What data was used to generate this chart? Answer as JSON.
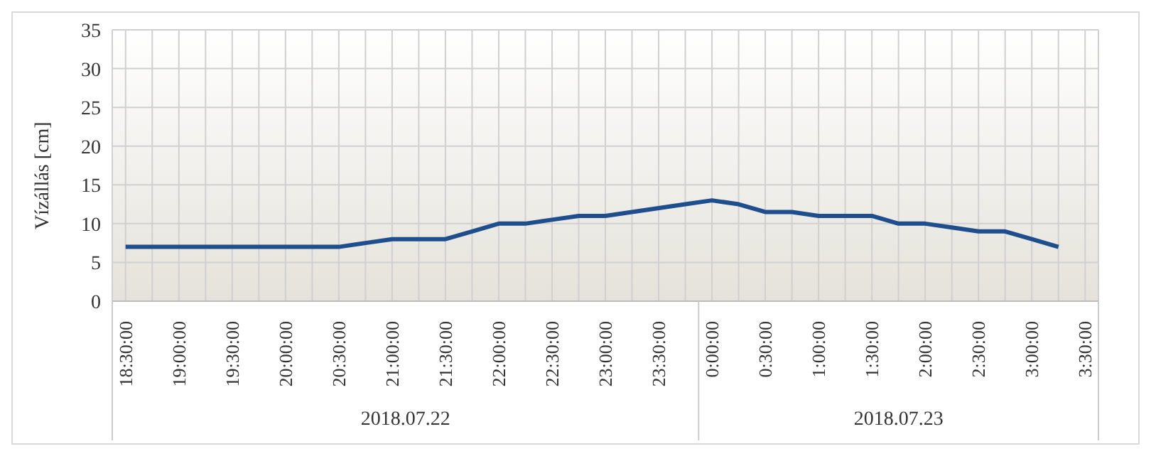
{
  "chart_data": {
    "type": "line",
    "ylabel": "Vízállás [cm]",
    "categories": [
      "18:30:00",
      null,
      "19:00:00",
      null,
      "19:30:00",
      null,
      "20:00:00",
      null,
      "20:30:00",
      null,
      "21:00:00",
      null,
      "21:30:00",
      null,
      "22:00:00",
      null,
      "22:30:00",
      null,
      "23:00:00",
      null,
      "23:30:00",
      null,
      "0:00:00",
      null,
      "0:30:00",
      null,
      "1:00:00",
      null,
      "1:30:00",
      null,
      "2:00:00",
      null,
      "2:30:00",
      null,
      "3:00:00",
      null,
      "3:30:00"
    ],
    "series": [
      {
        "color": "#1f4e8c",
        "values": [
          7,
          7,
          7,
          7,
          7,
          7,
          7,
          7,
          7,
          7.5,
          8,
          8,
          8,
          9,
          10,
          10,
          10.5,
          11,
          11,
          11.5,
          12,
          12.5,
          13,
          12.5,
          11.5,
          11.5,
          11,
          11,
          11,
          10,
          10,
          9.5,
          9,
          9,
          8,
          7,
          null
        ]
      }
    ],
    "ylim": [
      0,
      35
    ],
    "yticks": [
      0,
      5,
      10,
      15,
      20,
      25,
      30,
      35
    ],
    "grid": true,
    "marker": "none",
    "line_style": "solid",
    "annotations": [
      "2018.07.22",
      "2018.07.23"
    ]
  }
}
